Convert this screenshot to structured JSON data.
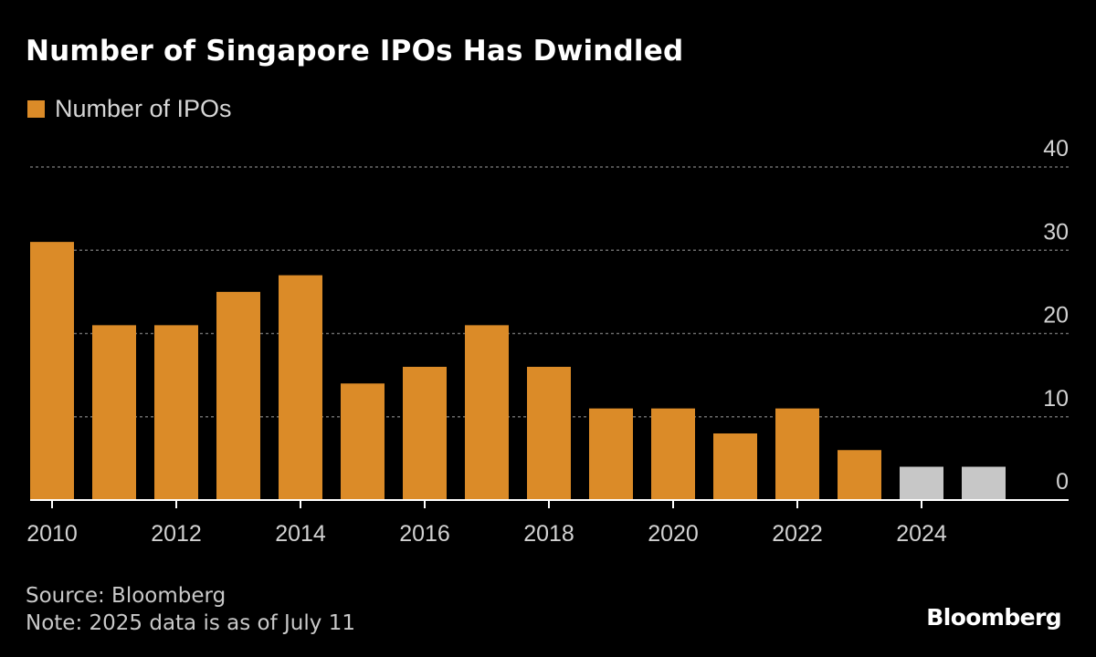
{
  "colors": {
    "primary_bar": "#db8b28",
    "partial_bar": "#c7c7c7",
    "background": "#000000",
    "grid": "#6b6b6b",
    "axis": "#ffffff",
    "tick_text": "#d2d2d2"
  },
  "chart_data": {
    "type": "bar",
    "title": "Number of Singapore IPOs Has Dwindled",
    "legend": [
      "Number of IPOs"
    ],
    "legend_position": "top-left",
    "xlabel": "",
    "ylabel": "",
    "ylim": [
      0,
      40
    ],
    "yticks": [
      0,
      10,
      20,
      30,
      40
    ],
    "y_axis_side": "right",
    "grid": true,
    "categories": [
      "2010",
      "2011",
      "2012",
      "2013",
      "2014",
      "2015",
      "2016",
      "2017",
      "2018",
      "2019",
      "2020",
      "2021",
      "2022",
      "2023",
      "2024",
      "2025"
    ],
    "x_tick_labels": [
      "2010",
      "2012",
      "2014",
      "2016",
      "2018",
      "2020",
      "2022",
      "2024"
    ],
    "series": [
      {
        "name": "Number of IPOs",
        "values": [
          31,
          21,
          21,
          25,
          27,
          14,
          16,
          21,
          16,
          11,
          11,
          8,
          11,
          6,
          4,
          4
        ]
      }
    ],
    "highlighted_categories": [
      "2024",
      "2025"
    ]
  },
  "footer": {
    "source": "Source: Bloomberg",
    "note": "Note: 2025 data is as of July 11",
    "brand": "Bloomberg"
  }
}
